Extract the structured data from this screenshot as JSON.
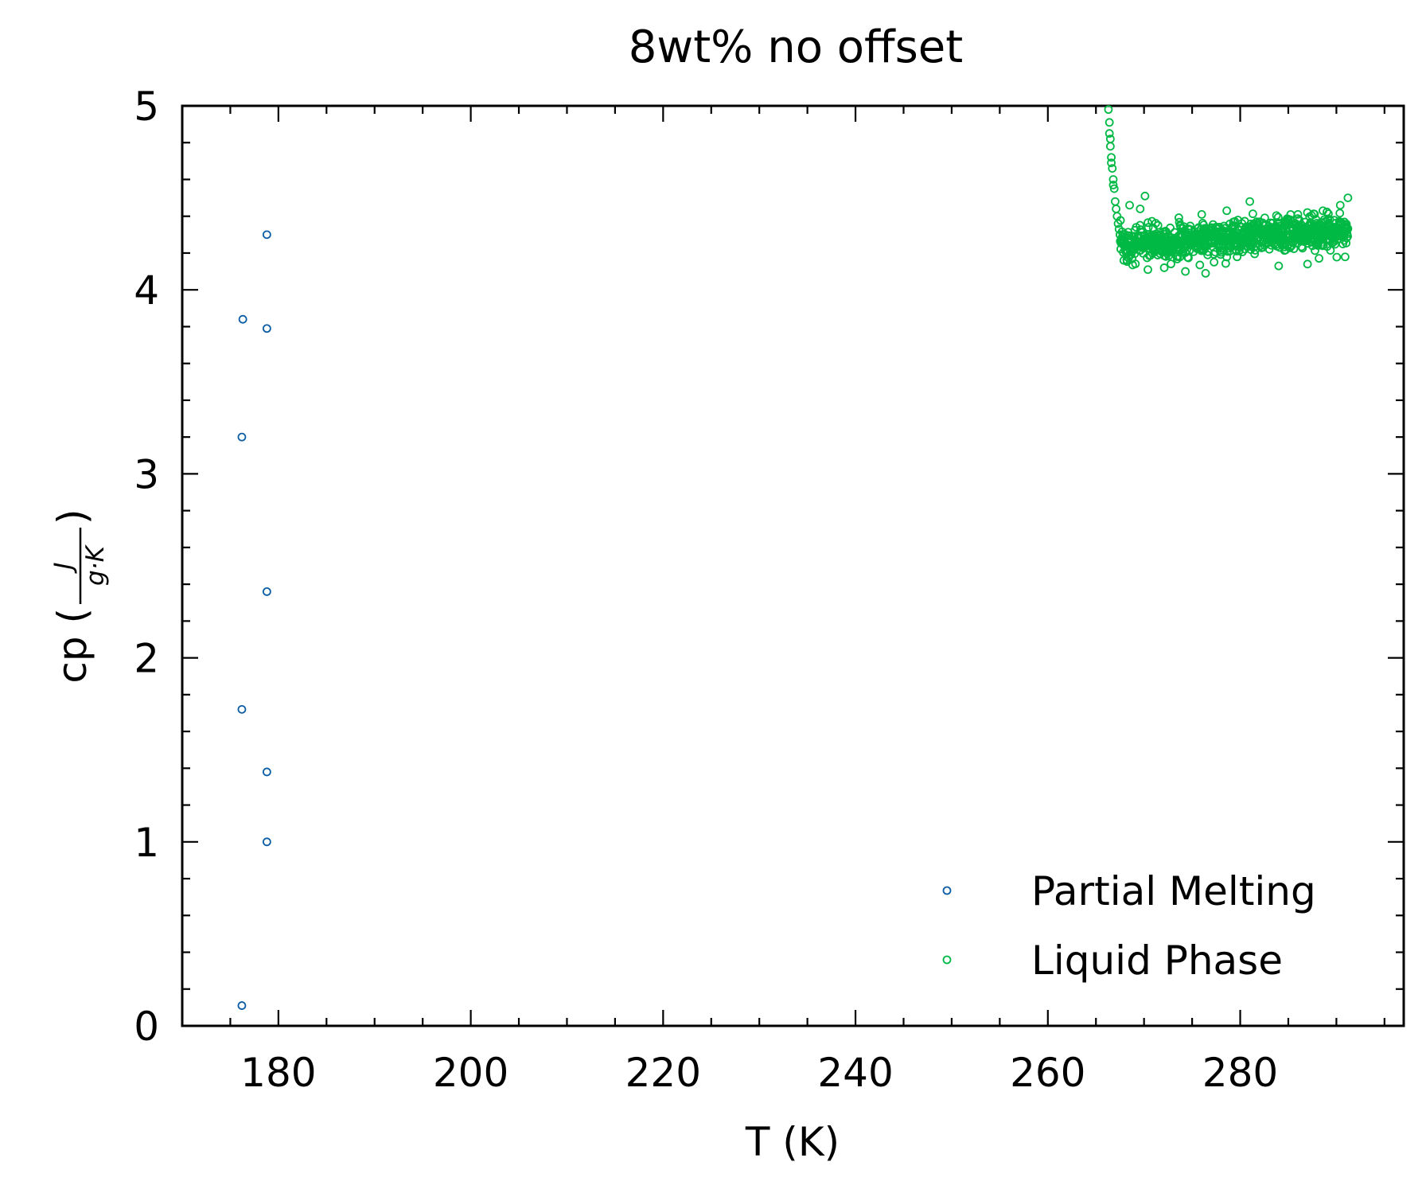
{
  "chart_data": {
    "type": "scatter",
    "title": "8wt% no offset",
    "xlabel": "T (K)",
    "ylabel": {
      "prefix": "cp (",
      "numerator": "J",
      "denominator": "g·K",
      "suffix": ")"
    },
    "xlim": [
      170,
      297
    ],
    "ylim": [
      0,
      5
    ],
    "xticks": [
      180,
      200,
      220,
      240,
      260,
      280
    ],
    "yticks": [
      0,
      1,
      2,
      3,
      4,
      5
    ],
    "x_minor_step": 5,
    "y_minor_step": 0.2,
    "tick_direction": "in",
    "grid": false,
    "legend": {
      "position": "bottom-right",
      "entries": [
        "Partial Melting",
        "Liquid Phase"
      ]
    },
    "marker": "hollow-circle",
    "series": [
      {
        "name": "Partial Melting",
        "color": "#0c5da5",
        "points": [
          [
            178.8,
            4.3
          ],
          [
            176.3,
            3.84
          ],
          [
            178.8,
            3.79
          ],
          [
            176.2,
            3.2
          ],
          [
            178.8,
            2.36
          ],
          [
            176.2,
            1.72
          ],
          [
            178.8,
            1.38
          ],
          [
            178.8,
            1.0
          ],
          [
            176.2,
            0.11
          ]
        ]
      },
      {
        "name": "Liquid Phase",
        "color": "#00b945",
        "knee": [
          [
            266.3,
            4.98
          ],
          [
            266.4,
            4.91
          ],
          [
            266.4,
            4.85
          ],
          [
            266.5,
            4.82
          ],
          [
            266.5,
            4.78
          ],
          [
            266.6,
            4.72
          ],
          [
            266.6,
            4.69
          ],
          [
            266.7,
            4.66
          ],
          [
            266.8,
            4.6
          ],
          [
            266.8,
            4.57
          ],
          [
            266.9,
            4.55
          ],
          [
            267.0,
            4.48
          ],
          [
            267.1,
            4.44
          ],
          [
            267.2,
            4.4
          ],
          [
            267.3,
            4.36
          ],
          [
            267.4,
            4.33
          ],
          [
            267.5,
            4.3
          ]
        ],
        "plateau": {
          "x_range": [
            267.5,
            291.2
          ],
          "count": 900,
          "mean_start": 4.25,
          "mean_end": 4.32,
          "spread": 0.1,
          "extremes": [
            [
              267.9,
              4.16
            ],
            [
              268.5,
              4.46
            ],
            [
              269.6,
              4.44
            ],
            [
              270.1,
              4.51
            ],
            [
              270.4,
              4.11
            ],
            [
              272.1,
              4.12
            ],
            [
              274.3,
              4.1
            ],
            [
              276.0,
              4.41
            ],
            [
              276.4,
              4.09
            ],
            [
              278.6,
              4.43
            ],
            [
              281.0,
              4.48
            ],
            [
              284.0,
              4.13
            ],
            [
              286.0,
              4.41
            ],
            [
              287.0,
              4.14
            ],
            [
              288.6,
              4.43
            ],
            [
              290.4,
              4.46
            ],
            [
              291.2,
              4.5
            ]
          ]
        }
      }
    ]
  }
}
